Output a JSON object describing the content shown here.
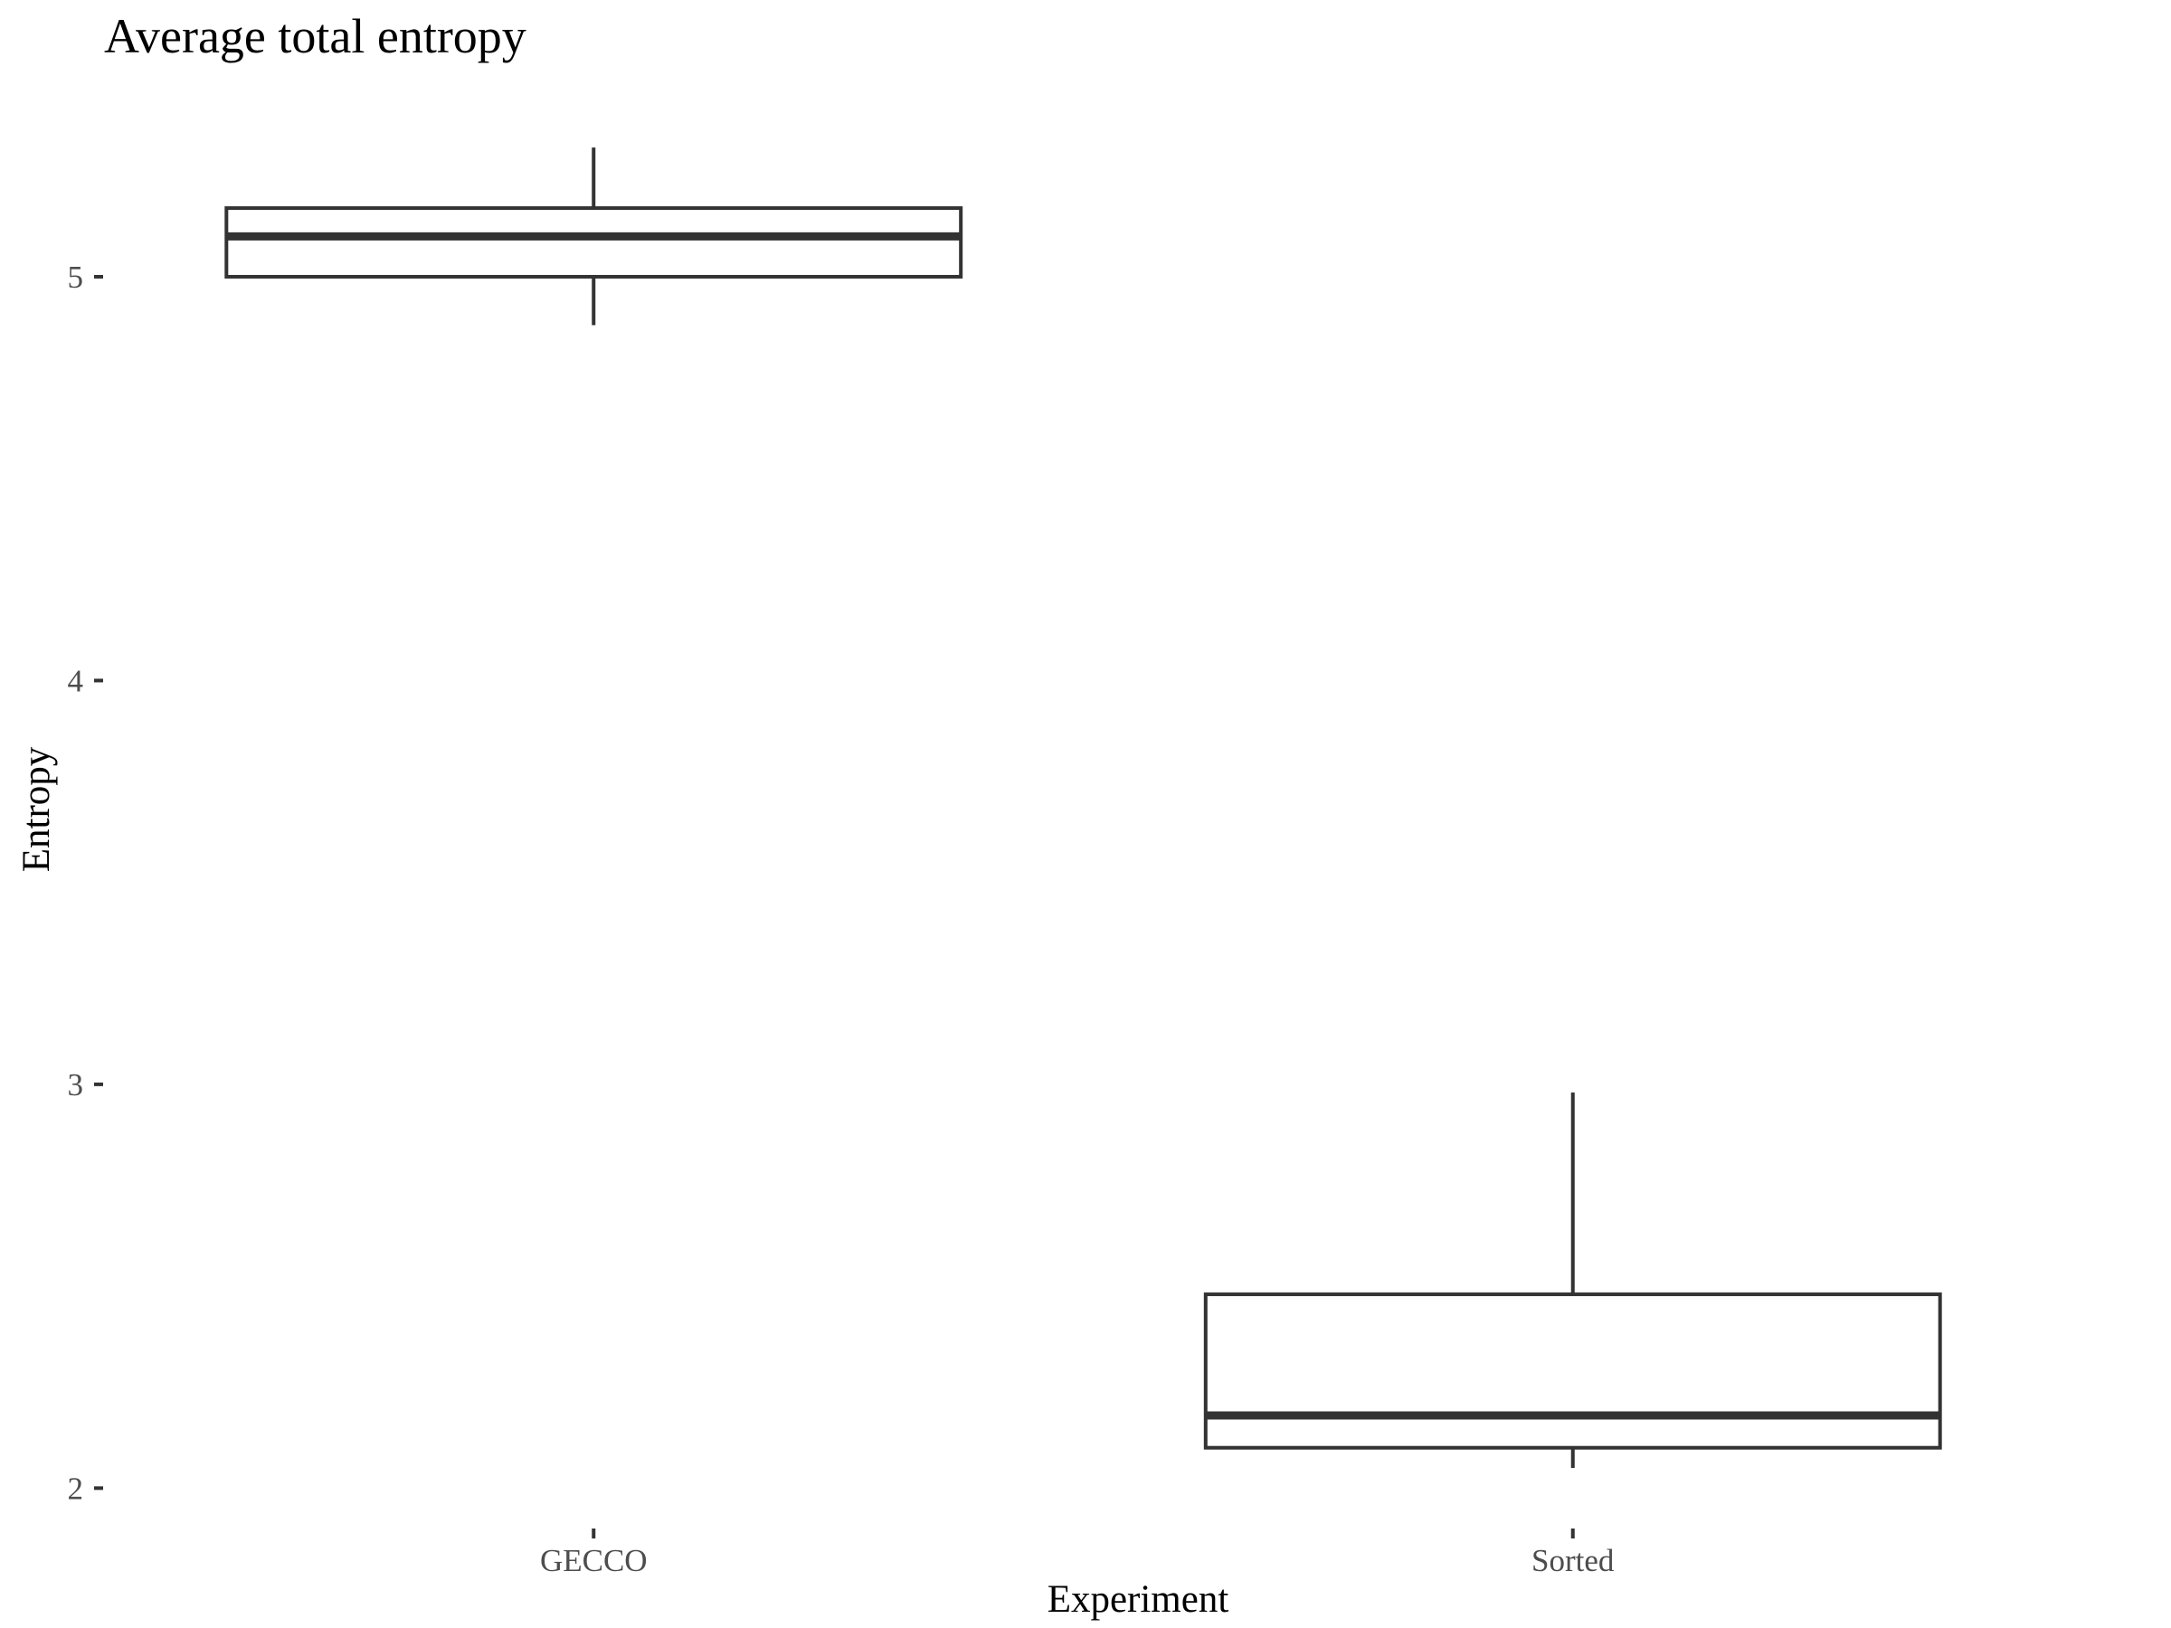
{
  "chart_data": {
    "type": "boxplot",
    "title": "Average total entropy",
    "xlabel": "Experiment",
    "ylabel": "Entropy",
    "categories": [
      "GECCO",
      "Sorted"
    ],
    "boxes": [
      {
        "category": "GECCO",
        "whisker_low": 4.88,
        "q1": 5.0,
        "median": 5.1,
        "q3": 5.17,
        "whisker_high": 5.32
      },
      {
        "category": "Sorted",
        "whisker_low": 2.05,
        "q1": 2.1,
        "median": 2.18,
        "q3": 2.48,
        "whisker_high": 2.98
      }
    ],
    "y_ticks": [
      2,
      3,
      4,
      5
    ],
    "y_tick_labels": [
      "2",
      "3",
      "4",
      "5"
    ],
    "ylim": [
      1.9,
      5.43
    ],
    "grid": false,
    "legend": "none",
    "colors": {
      "box_stroke": "#333333",
      "tick_label": "#4d4d4d",
      "background": "#ffffff"
    }
  }
}
